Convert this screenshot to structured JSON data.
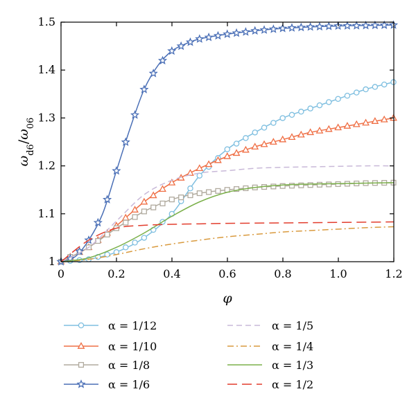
{
  "chart_data": {
    "type": "line",
    "xlabel": "φ",
    "ylabel_base": "ω",
    "ylabel_num_sub": "d6",
    "ylabel_den_sub": "06",
    "xlim": [
      0,
      1.2
    ],
    "ylim": [
      1.0,
      1.5
    ],
    "x_ticks": [
      "0",
      "0.2",
      "0.4",
      "0.6",
      "0.8",
      "1.0",
      "1.2"
    ],
    "y_ticks": [
      "1",
      "1.1",
      "1.2",
      "1.3",
      "1.4",
      "1.5"
    ],
    "grid": false,
    "legend_position": "bottom",
    "series": [
      {
        "name": "α = 1/12",
        "color": "#7fbfe0",
        "marker": "circle",
        "dash": "solid",
        "x": [
          0,
          0.1,
          0.2,
          0.3,
          0.4,
          0.5,
          0.6,
          0.7,
          0.8,
          0.9,
          1.0,
          1.1,
          1.2
        ],
        "y": [
          1.0,
          1.005,
          1.02,
          1.05,
          1.1,
          1.18,
          1.235,
          1.27,
          1.3,
          1.32,
          1.34,
          1.36,
          1.375
        ]
      },
      {
        "name": "α = 1/10",
        "color": "#ef6f45",
        "marker": "triangle",
        "dash": "solid",
        "x": [
          0,
          0.1,
          0.2,
          0.3,
          0.4,
          0.5,
          0.6,
          0.7,
          0.8,
          0.9,
          1.0,
          1.1,
          1.2
        ],
        "y": [
          1.0,
          1.03,
          1.075,
          1.125,
          1.165,
          1.195,
          1.22,
          1.24,
          1.255,
          1.27,
          1.28,
          1.29,
          1.3
        ]
      },
      {
        "name": "α = 1/8",
        "color": "#b0aa9e",
        "marker": "square",
        "dash": "solid",
        "x": [
          0,
          0.1,
          0.2,
          0.3,
          0.4,
          0.5,
          0.6,
          0.7,
          0.8,
          0.9,
          1.0,
          1.1,
          1.2
        ],
        "y": [
          1.0,
          1.03,
          1.07,
          1.105,
          1.13,
          1.143,
          1.15,
          1.155,
          1.158,
          1.16,
          1.162,
          1.164,
          1.165
        ]
      },
      {
        "name": "α = 1/6",
        "color": "#4a6fb6",
        "marker": "star",
        "dash": "solid",
        "x": [
          0,
          0.05,
          0.1,
          0.15,
          0.2,
          0.25,
          0.3,
          0.35,
          0.4,
          0.45,
          0.5,
          0.6,
          0.7,
          0.8,
          0.9,
          1.0,
          1.1,
          1.2
        ],
        "y": [
          1.0,
          1.01,
          1.045,
          1.1,
          1.19,
          1.28,
          1.36,
          1.41,
          1.44,
          1.455,
          1.465,
          1.475,
          1.482,
          1.487,
          1.49,
          1.492,
          1.493,
          1.494
        ]
      },
      {
        "name": "α = 1/5",
        "color": "#c8b8d8",
        "marker": "none",
        "dash": "8,5",
        "x": [
          0,
          0.1,
          0.2,
          0.3,
          0.4,
          0.5,
          0.6,
          0.7,
          0.8,
          0.9,
          1.0,
          1.1,
          1.2
        ],
        "y": [
          1.0,
          1.03,
          1.085,
          1.14,
          1.17,
          1.185,
          1.19,
          1.195,
          1.197,
          1.198,
          1.199,
          1.2,
          1.2
        ]
      },
      {
        "name": "α = 1/4",
        "color": "#d99a3e",
        "marker": "none",
        "dash": "9,4,2,4",
        "x": [
          0,
          0.1,
          0.2,
          0.3,
          0.4,
          0.5,
          0.6,
          0.7,
          0.8,
          0.9,
          1.0,
          1.1,
          1.2
        ],
        "y": [
          1.0,
          1.005,
          1.015,
          1.027,
          1.037,
          1.045,
          1.052,
          1.057,
          1.062,
          1.065,
          1.068,
          1.071,
          1.073
        ]
      },
      {
        "name": "α = 1/3",
        "color": "#7bb04a",
        "marker": "none",
        "dash": "solid",
        "x": [
          0,
          0.1,
          0.2,
          0.3,
          0.4,
          0.5,
          0.6,
          0.7,
          0.8,
          0.9,
          1.0,
          1.1,
          1.2
        ],
        "y": [
          1.0,
          1.008,
          1.03,
          1.06,
          1.095,
          1.125,
          1.145,
          1.155,
          1.16,
          1.162,
          1.163,
          1.164,
          1.165
        ]
      },
      {
        "name": "α = 1/2",
        "color": "#e23c2c",
        "marker": "none",
        "dash": "14,7",
        "x": [
          0,
          0.1,
          0.2,
          0.3,
          0.4,
          0.5,
          0.6,
          0.8,
          1.0,
          1.2
        ],
        "y": [
          1.0,
          1.045,
          1.07,
          1.076,
          1.078,
          1.079,
          1.08,
          1.081,
          1.082,
          1.083
        ]
      }
    ]
  }
}
